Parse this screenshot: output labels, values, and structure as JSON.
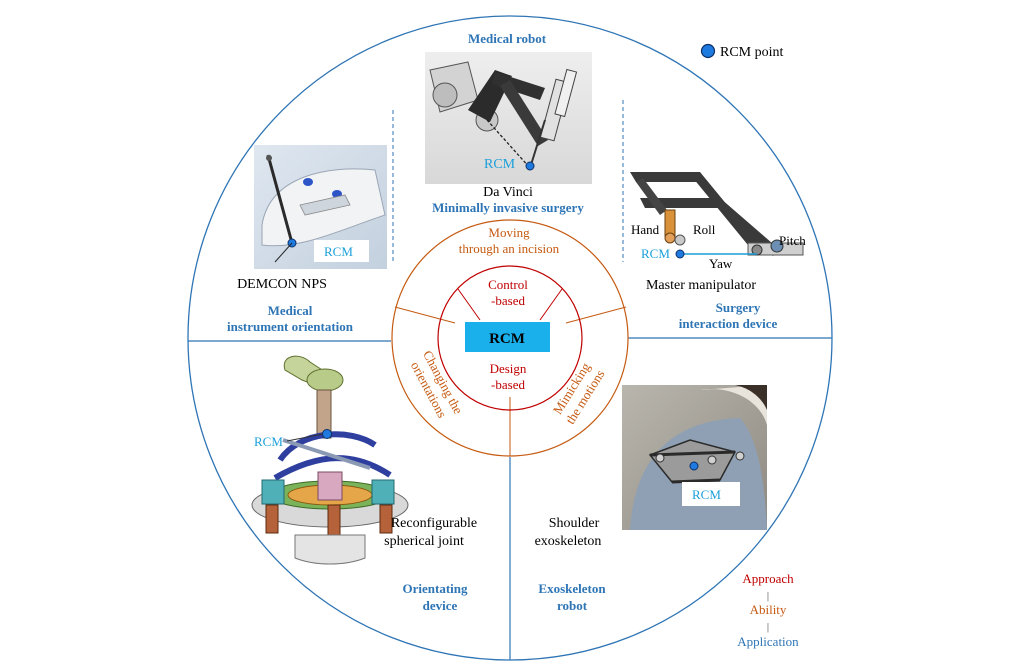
{
  "legend": {
    "rcm_point": "RCM point"
  },
  "center": {
    "label": "RCM"
  },
  "approaches": {
    "control": [
      "Control",
      "-based"
    ],
    "design": [
      "Design",
      "-based"
    ]
  },
  "abilities": {
    "moving": [
      "Moving",
      "through an incision"
    ],
    "changing": [
      "Changing the",
      "orientations"
    ],
    "mimicking": [
      "Mimicking",
      "the motions"
    ]
  },
  "applications": {
    "medical_robot": "Medical robot",
    "medical_instrument": [
      "Medical",
      "instrument orientation"
    ],
    "surgery_interaction": [
      "Surgery",
      "interaction device"
    ],
    "orientating": [
      "Orientating",
      "device"
    ],
    "exoskeleton": [
      "Exoskeleton",
      "robot"
    ]
  },
  "examples": {
    "da_vinci": "Da Vinci",
    "mis": "Minimally invasive surgery",
    "demcon": "DEMCON NPS",
    "master": "Master manipulator",
    "reconfig": [
      "Reconfigurable",
      "spherical joint"
    ],
    "shoulder": [
      "Shoulder",
      "exoskeleton"
    ]
  },
  "annotations": {
    "rcm": "RCM",
    "hand": "Hand",
    "roll": "Roll",
    "pitch": "Pitch",
    "yaw": "Yaw"
  },
  "key": {
    "approach": "Approach",
    "sep1": "|",
    "ability": "Ability",
    "sep2": "|",
    "application": "Application"
  },
  "colors": {
    "outer": "#2f75b5",
    "application": "#2e75b6",
    "ability": "#c55a11",
    "approach": "#c00000",
    "center_fill": "#1ab0ec",
    "rcm_text": "#1a9fd9",
    "rcm_dot": "#1f7ae0"
  }
}
